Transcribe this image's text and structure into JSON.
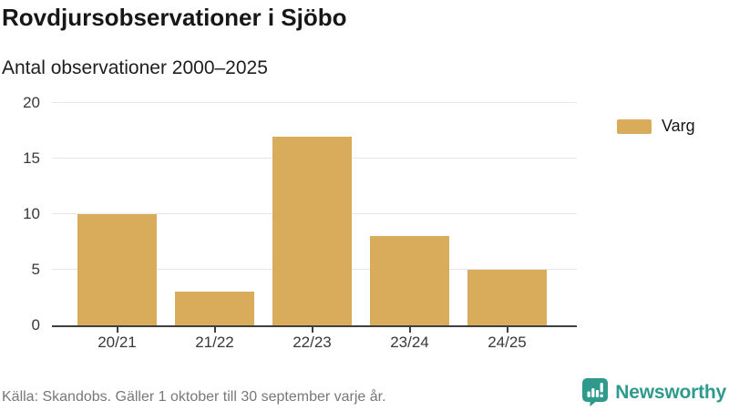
{
  "header": {
    "title": "Rovdjursobservationer i Sjöbo",
    "subtitle": "Antal observationer 2000–2025"
  },
  "legend": {
    "label": "Varg",
    "swatch_color": "#d9ac5c"
  },
  "chart_data": {
    "type": "bar",
    "categories": [
      "20/21",
      "21/22",
      "22/23",
      "23/24",
      "24/25"
    ],
    "series": [
      {
        "name": "Varg",
        "values": [
          10,
          3,
          17,
          8,
          5
        ],
        "color": "#d9ac5c"
      }
    ],
    "title": "Rovdjursobservationer i Sjöbo",
    "subtitle": "Antal observationer 2000–2025",
    "xlabel": "",
    "ylabel": "",
    "ylim": [
      0,
      20
    ],
    "yticks": [
      0,
      5,
      10,
      15,
      20
    ],
    "grid": true,
    "legend_position": "right"
  },
  "footer": {
    "source": "Källa: Skandobs. Gäller 1 oktober till 30 september varje år.",
    "brand": "Newsworthy",
    "brand_color": "#2f9a8c"
  },
  "colors": {
    "bar": "#d9ac5c",
    "gridline": "#e7e7e7",
    "axis_line": "#3f3f3f",
    "axis_text": "#383838",
    "title_text": "#171717",
    "source_text": "#787878",
    "brand_teal": "#2f9a8c",
    "background": "#ffffff"
  }
}
